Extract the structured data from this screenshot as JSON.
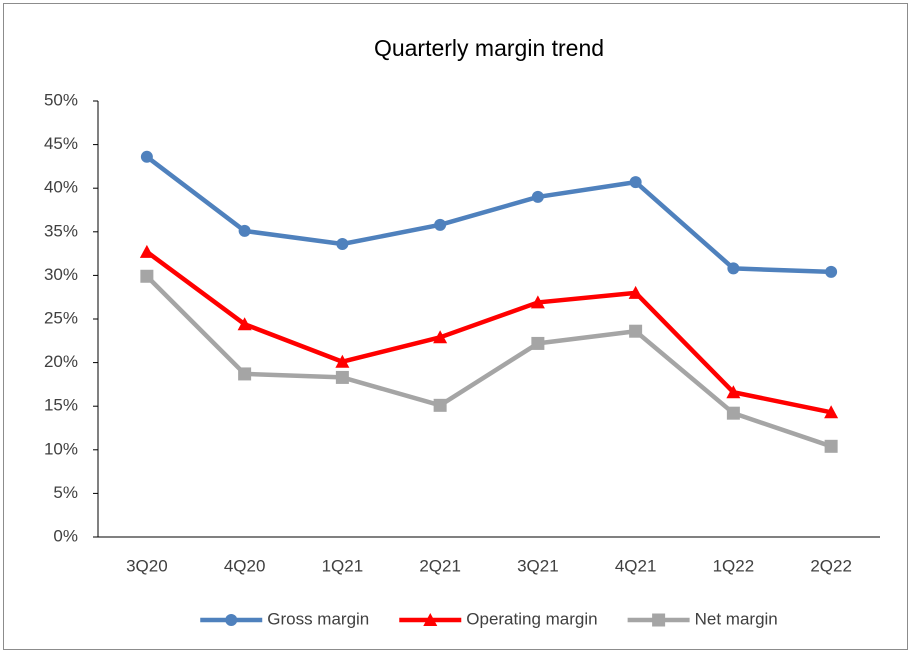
{
  "chart_data": {
    "type": "line",
    "title": "Quarterly margin trend",
    "categories": [
      "3Q20",
      "4Q20",
      "1Q21",
      "2Q21",
      "3Q21",
      "4Q21",
      "1Q22",
      "2Q22"
    ],
    "series": [
      {
        "name": "Gross margin",
        "color": "#4f81bd",
        "marker": "circle",
        "values": [
          43.6,
          35.1,
          33.6,
          35.8,
          39.0,
          40.7,
          30.8,
          30.4
        ]
      },
      {
        "name": "Operating margin",
        "color": "#ff0000",
        "marker": "triangle",
        "values": [
          32.7,
          24.4,
          20.1,
          22.9,
          26.9,
          28.0,
          16.6,
          14.3
        ]
      },
      {
        "name": "Net margin",
        "color": "#a5a5a5",
        "marker": "square",
        "values": [
          29.9,
          18.7,
          18.3,
          15.1,
          22.2,
          23.6,
          14.2,
          10.4
        ]
      }
    ],
    "ylim": [
      0,
      50
    ],
    "yticks": [
      {
        "value": 0,
        "label": "0%"
      },
      {
        "value": 5,
        "label": "5%"
      },
      {
        "value": 10,
        "label": "10%"
      },
      {
        "value": 15,
        "label": "15%"
      },
      {
        "value": 20,
        "label": "20%"
      },
      {
        "value": 25,
        "label": "25%"
      },
      {
        "value": 30,
        "label": "30%"
      },
      {
        "value": 35,
        "label": "35%"
      },
      {
        "value": 40,
        "label": "40%"
      },
      {
        "value": 45,
        "label": "45%"
      },
      {
        "value": 50,
        "label": "50%"
      }
    ],
    "grid": false,
    "legend": "bottom"
  }
}
